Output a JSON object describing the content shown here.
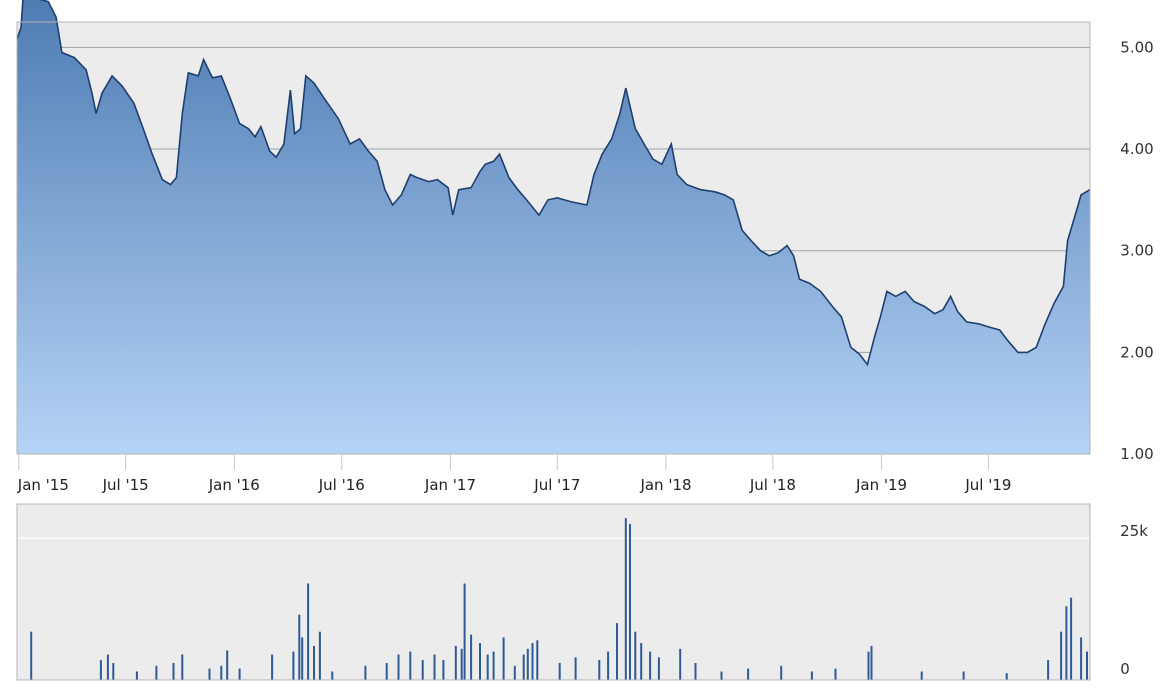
{
  "chart_data": [
    {
      "type": "area",
      "panel": "price",
      "x_ticks": [
        "Jan '15",
        "Jul '15",
        "Jan '16",
        "Jul '16",
        "Jan '17",
        "Jul '17",
        "Jan '18",
        "Jul '18",
        "Jan '19",
        "Jul '19"
      ],
      "y_ticks": [
        "1.00",
        "2.00",
        "3.00",
        "4.00",
        "5.00"
      ],
      "ylim": [
        1.0,
        5.25
      ],
      "xlim": [
        "2014-12-29",
        "2019-12-20"
      ],
      "grid": true,
      "colors": {
        "line": "#1f3f6e",
        "fill_top": "#4a78b0",
        "fill_bottom": "#b5d3f6",
        "background": "#ececec",
        "grid": "#9aa4ad"
      },
      "series": [
        {
          "points": [
            [
              "2014-12-29",
              5.08
            ],
            [
              "2015-01-05",
              5.2
            ],
            [
              "2015-01-10",
              5.65
            ],
            [
              "2015-01-20",
              5.55
            ],
            [
              "2015-02-01",
              5.48
            ],
            [
              "2015-02-20",
              5.45
            ],
            [
              "2015-03-05",
              5.3
            ],
            [
              "2015-03-15",
              4.95
            ],
            [
              "2015-04-05",
              4.9
            ],
            [
              "2015-04-25",
              4.78
            ],
            [
              "2015-05-05",
              4.55
            ],
            [
              "2015-05-12",
              4.35
            ],
            [
              "2015-05-22",
              4.55
            ],
            [
              "2015-06-08",
              4.72
            ],
            [
              "2015-06-25",
              4.62
            ],
            [
              "2015-07-15",
              4.45
            ],
            [
              "2015-08-01",
              4.18
            ],
            [
              "2015-08-15",
              3.95
            ],
            [
              "2015-09-01",
              3.7
            ],
            [
              "2015-09-15",
              3.65
            ],
            [
              "2015-09-25",
              3.72
            ],
            [
              "2015-10-05",
              4.35
            ],
            [
              "2015-10-15",
              4.75
            ],
            [
              "2015-11-01",
              4.72
            ],
            [
              "2015-11-10",
              4.88
            ],
            [
              "2015-11-25",
              4.7
            ],
            [
              "2015-12-10",
              4.72
            ],
            [
              "2015-12-25",
              4.5
            ],
            [
              "2016-01-10",
              4.25
            ],
            [
              "2016-01-25",
              4.2
            ],
            [
              "2016-02-05",
              4.12
            ],
            [
              "2016-02-15",
              4.22
            ],
            [
              "2016-03-01",
              3.98
            ],
            [
              "2016-03-12",
              3.92
            ],
            [
              "2016-03-25",
              4.05
            ],
            [
              "2016-04-05",
              4.58
            ],
            [
              "2016-04-12",
              4.15
            ],
            [
              "2016-04-22",
              4.2
            ],
            [
              "2016-05-01",
              4.72
            ],
            [
              "2016-05-15",
              4.65
            ],
            [
              "2016-06-01",
              4.5
            ],
            [
              "2016-06-25",
              4.3
            ],
            [
              "2016-07-15",
              4.05
            ],
            [
              "2016-07-31",
              4.1
            ],
            [
              "2016-08-15",
              3.98
            ],
            [
              "2016-08-30",
              3.88
            ],
            [
              "2016-09-12",
              3.6
            ],
            [
              "2016-09-25",
              3.45
            ],
            [
              "2016-10-10",
              3.55
            ],
            [
              "2016-10-25",
              3.75
            ],
            [
              "2016-11-05",
              3.72
            ],
            [
              "2016-11-25",
              3.68
            ],
            [
              "2016-12-10",
              3.7
            ],
            [
              "2016-12-28",
              3.62
            ],
            [
              "2017-01-05",
              3.35
            ],
            [
              "2017-01-15",
              3.6
            ],
            [
              "2017-02-05",
              3.62
            ],
            [
              "2017-02-20",
              3.78
            ],
            [
              "2017-03-01",
              3.85
            ],
            [
              "2017-03-15",
              3.88
            ],
            [
              "2017-03-25",
              3.95
            ],
            [
              "2017-04-10",
              3.72
            ],
            [
              "2017-04-25",
              3.6
            ],
            [
              "2017-05-10",
              3.5
            ],
            [
              "2017-05-31",
              3.35
            ],
            [
              "2017-06-15",
              3.5
            ],
            [
              "2017-07-01",
              3.52
            ],
            [
              "2017-07-25",
              3.48
            ],
            [
              "2017-08-20",
              3.45
            ],
            [
              "2017-09-01",
              3.75
            ],
            [
              "2017-09-15",
              3.95
            ],
            [
              "2017-10-01",
              4.1
            ],
            [
              "2017-10-15",
              4.35
            ],
            [
              "2017-10-25",
              4.6
            ],
            [
              "2017-11-10",
              4.2
            ],
            [
              "2017-11-25",
              4.05
            ],
            [
              "2017-12-10",
              3.9
            ],
            [
              "2017-12-25",
              3.85
            ],
            [
              "2018-01-10",
              4.05
            ],
            [
              "2018-01-20",
              3.75
            ],
            [
              "2018-02-05",
              3.65
            ],
            [
              "2018-03-01",
              3.6
            ],
            [
              "2018-03-25",
              3.58
            ],
            [
              "2018-04-10",
              3.55
            ],
            [
              "2018-04-25",
              3.5
            ],
            [
              "2018-05-10",
              3.2
            ],
            [
              "2018-05-25",
              3.1
            ],
            [
              "2018-06-10",
              3.0
            ],
            [
              "2018-06-25",
              2.95
            ],
            [
              "2018-07-10",
              2.98
            ],
            [
              "2018-07-25",
              3.05
            ],
            [
              "2018-08-05",
              2.95
            ],
            [
              "2018-08-15",
              2.72
            ],
            [
              "2018-09-01",
              2.68
            ],
            [
              "2018-09-20",
              2.6
            ],
            [
              "2018-10-10",
              2.45
            ],
            [
              "2018-10-25",
              2.35
            ],
            [
              "2018-11-10",
              2.05
            ],
            [
              "2018-11-25",
              1.98
            ],
            [
              "2018-12-08",
              1.88
            ],
            [
              "2018-12-20",
              2.15
            ],
            [
              "2018-12-30",
              2.35
            ],
            [
              "2019-01-10",
              2.6
            ],
            [
              "2019-01-25",
              2.55
            ],
            [
              "2019-02-10",
              2.6
            ],
            [
              "2019-02-25",
              2.5
            ],
            [
              "2019-03-15",
              2.45
            ],
            [
              "2019-04-01",
              2.38
            ],
            [
              "2019-04-15",
              2.42
            ],
            [
              "2019-04-28",
              2.55
            ],
            [
              "2019-05-10",
              2.4
            ],
            [
              "2019-05-25",
              2.3
            ],
            [
              "2019-06-15",
              2.28
            ],
            [
              "2019-07-01",
              2.25
            ],
            [
              "2019-07-20",
              2.22
            ],
            [
              "2019-08-05",
              2.1
            ],
            [
              "2019-08-20",
              2.0
            ],
            [
              "2019-09-05",
              2.0
            ],
            [
              "2019-09-20",
              2.05
            ],
            [
              "2019-10-05",
              2.28
            ],
            [
              "2019-10-20",
              2.48
            ],
            [
              "2019-11-05",
              2.65
            ],
            [
              "2019-11-12",
              3.1
            ],
            [
              "2019-11-25",
              3.35
            ],
            [
              "2019-12-05",
              3.55
            ],
            [
              "2019-12-20",
              3.6
            ]
          ]
        }
      ]
    },
    {
      "type": "bar",
      "panel": "volume",
      "y_ticks": [
        "0",
        "25k"
      ],
      "ylim": [
        0,
        31000
      ],
      "grid": true,
      "colors": {
        "bar": "#2e5a96",
        "background": "#ececec",
        "grid": "#ffffff"
      },
      "series": [
        {
          "points": [
            [
              "2015-01-22",
              8500
            ],
            [
              "2015-05-20",
              3500
            ],
            [
              "2015-06-01",
              4500
            ],
            [
              "2015-06-10",
              3000
            ],
            [
              "2015-07-20",
              1500
            ],
            [
              "2015-08-22",
              2500
            ],
            [
              "2015-09-20",
              3000
            ],
            [
              "2015-10-05",
              4500
            ],
            [
              "2015-11-20",
              2000
            ],
            [
              "2015-12-10",
              2500
            ],
            [
              "2015-12-20",
              5200
            ],
            [
              "2016-01-10",
              2000
            ],
            [
              "2016-03-05",
              4500
            ],
            [
              "2016-04-10",
              5000
            ],
            [
              "2016-04-20",
              11500
            ],
            [
              "2016-04-25",
              7500
            ],
            [
              "2016-05-05",
              17000
            ],
            [
              "2016-05-15",
              6000
            ],
            [
              "2016-05-25",
              8500
            ],
            [
              "2016-06-15",
              1500
            ],
            [
              "2016-08-10",
              2500
            ],
            [
              "2016-09-15",
              3000
            ],
            [
              "2016-10-05",
              4500
            ],
            [
              "2016-10-25",
              5000
            ],
            [
              "2016-11-15",
              3500
            ],
            [
              "2016-12-05",
              4500
            ],
            [
              "2016-12-20",
              3500
            ],
            [
              "2017-01-10",
              6000
            ],
            [
              "2017-01-20",
              5500
            ],
            [
              "2017-01-25",
              17000
            ],
            [
              "2017-02-05",
              8000
            ],
            [
              "2017-02-20",
              6500
            ],
            [
              "2017-03-05",
              4500
            ],
            [
              "2017-03-15",
              5000
            ],
            [
              "2017-04-01",
              7500
            ],
            [
              "2017-04-20",
              2500
            ],
            [
              "2017-05-05",
              4500
            ],
            [
              "2017-05-12",
              5500
            ],
            [
              "2017-05-20",
              6500
            ],
            [
              "2017-05-28",
              7000
            ],
            [
              "2017-07-05",
              3000
            ],
            [
              "2017-08-01",
              4000
            ],
            [
              "2017-09-10",
              3500
            ],
            [
              "2017-09-25",
              5000
            ],
            [
              "2017-10-10",
              10000
            ],
            [
              "2017-10-25",
              28500
            ],
            [
              "2017-11-01",
              27500
            ],
            [
              "2017-11-10",
              8500
            ],
            [
              "2017-11-20",
              6500
            ],
            [
              "2017-12-05",
              5000
            ],
            [
              "2017-12-20",
              4000
            ],
            [
              "2018-01-25",
              5500
            ],
            [
              "2018-02-20",
              3000
            ],
            [
              "2018-04-05",
              1500
            ],
            [
              "2018-05-20",
              2000
            ],
            [
              "2018-07-15",
              2500
            ],
            [
              "2018-09-05",
              1500
            ],
            [
              "2018-10-15",
              2000
            ],
            [
              "2018-12-10",
              5000
            ],
            [
              "2018-12-15",
              6000
            ],
            [
              "2019-03-10",
              1500
            ],
            [
              "2019-05-20",
              1500
            ],
            [
              "2019-08-01",
              1200
            ],
            [
              "2019-10-10",
              3500
            ],
            [
              "2019-11-01",
              8500
            ],
            [
              "2019-11-10",
              13000
            ],
            [
              "2019-11-18",
              14500
            ],
            [
              "2019-12-05",
              7500
            ],
            [
              "2019-12-15",
              5000
            ]
          ]
        }
      ]
    }
  ]
}
